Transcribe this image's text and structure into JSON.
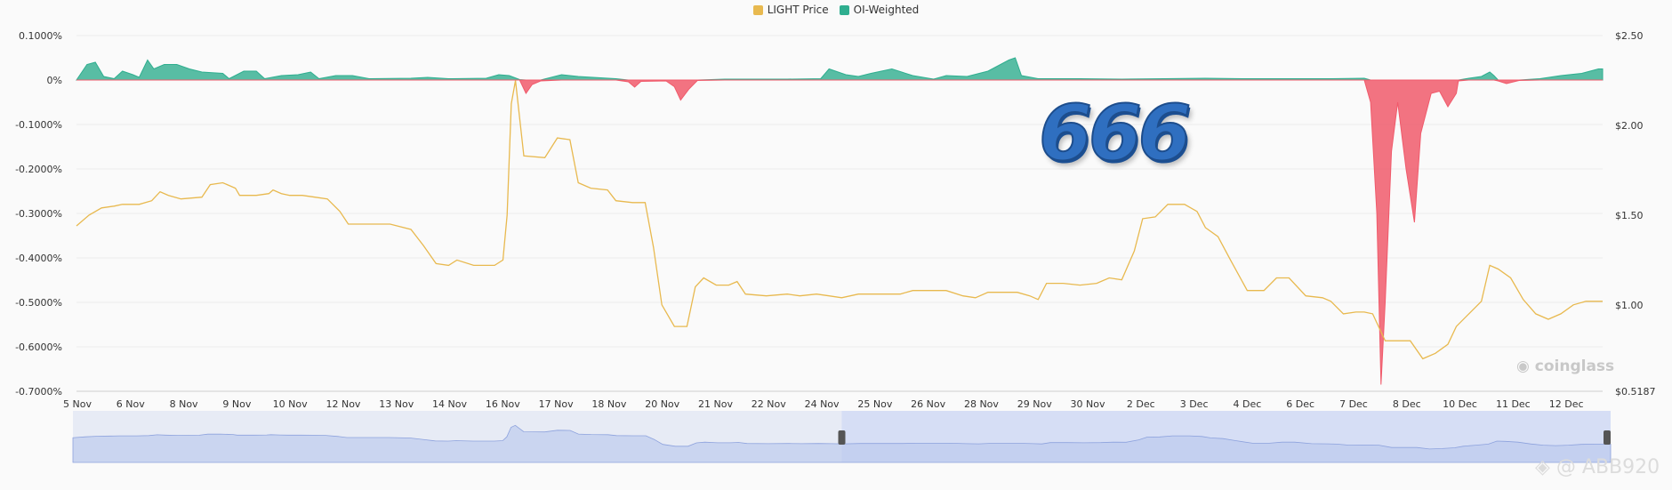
{
  "legend": [
    {
      "label": "LIGHT Price",
      "color": "#e8b94f"
    },
    {
      "label": "OI-Weighted",
      "color": "#2fae8f"
    }
  ],
  "overlay_text": "666",
  "watermarks": {
    "brand": "coinglass",
    "user": "@ ABB920"
  },
  "chart_data": {
    "type": "area",
    "title": "",
    "left_axis": {
      "ticks": [
        "0.1000%",
        "0%",
        "-0.1000%",
        "-0.2000%",
        "-0.3000%",
        "-0.4000%",
        "-0.5000%",
        "-0.6000%",
        "-0.7000%"
      ],
      "range": [
        -0.7,
        0.1
      ],
      "unit": "%"
    },
    "right_axis": {
      "ticks": [
        "$2.50",
        "$2.00",
        "$1.50",
        "$1.00",
        "$0.5187"
      ],
      "tick_values": [
        2.5,
        2.0,
        1.5,
        1.0,
        0.5187
      ],
      "range": [
        0.5187,
        2.5
      ]
    },
    "x_tick_labels": [
      "5 Nov",
      "6 Nov",
      "8 Nov",
      "9 Nov",
      "10 Nov",
      "12 Nov",
      "13 Nov",
      "14 Nov",
      "16 Nov",
      "17 Nov",
      "18 Nov",
      "20 Nov",
      "21 Nov",
      "22 Nov",
      "24 Nov",
      "25 Nov",
      "26 Nov",
      "28 Nov",
      "29 Nov",
      "30 Nov",
      "2 Dec",
      "3 Dec",
      "4 Dec",
      "6 Dec",
      "7 Dec",
      "8 Dec",
      "10 Dec",
      "11 Dec",
      "12 Dec"
    ],
    "x_range_days": [
      0,
      36.5
    ],
    "grid": true,
    "legend_position": "top-center",
    "series": [
      {
        "name": "OI-Weighted",
        "axis": "left",
        "positive_color": "#2fae8f",
        "negative_color": "#f05a6b",
        "points": [
          [
            0,
            0.0
          ],
          [
            0.25,
            0.035
          ],
          [
            0.45,
            0.04
          ],
          [
            0.65,
            0.008
          ],
          [
            0.9,
            0.003
          ],
          [
            1.1,
            0.02
          ],
          [
            1.35,
            0.012
          ],
          [
            1.5,
            0.006
          ],
          [
            1.7,
            0.045
          ],
          [
            1.85,
            0.025
          ],
          [
            2.1,
            0.035
          ],
          [
            2.4,
            0.035
          ],
          [
            2.7,
            0.025
          ],
          [
            3.0,
            0.018
          ],
          [
            3.5,
            0.015
          ],
          [
            3.65,
            0.003
          ],
          [
            4.0,
            0.02
          ],
          [
            4.3,
            0.02
          ],
          [
            4.5,
            0.003
          ],
          [
            4.9,
            0.01
          ],
          [
            5.3,
            0.012
          ],
          [
            5.6,
            0.018
          ],
          [
            5.8,
            0.003
          ],
          [
            6.2,
            0.01
          ],
          [
            6.6,
            0.01
          ],
          [
            7.0,
            0.003
          ],
          [
            8.0,
            0.004
          ],
          [
            8.4,
            0.006
          ],
          [
            8.9,
            0.003
          ],
          [
            9.8,
            0.004
          ],
          [
            10.1,
            0.012
          ],
          [
            10.35,
            0.01
          ],
          [
            10.6,
            0.001
          ],
          [
            10.75,
            -0.03
          ],
          [
            10.9,
            -0.01
          ],
          [
            11.1,
            -0.002
          ],
          [
            11.6,
            0.012
          ],
          [
            12.0,
            0.008
          ],
          [
            12.9,
            0.003
          ],
          [
            13.2,
            -0.004
          ],
          [
            13.35,
            -0.016
          ],
          [
            13.5,
            -0.003
          ],
          [
            14.1,
            -0.002
          ],
          [
            14.3,
            -0.015
          ],
          [
            14.45,
            -0.045
          ],
          [
            14.65,
            -0.02
          ],
          [
            14.85,
            -0.001
          ],
          [
            15.5,
            0.002
          ],
          [
            17.0,
            0.002
          ],
          [
            17.8,
            0.003
          ],
          [
            18.0,
            0.025
          ],
          [
            18.4,
            0.012
          ],
          [
            18.7,
            0.008
          ],
          [
            19.0,
            0.015
          ],
          [
            19.5,
            0.025
          ],
          [
            20.0,
            0.01
          ],
          [
            20.5,
            0.002
          ],
          [
            20.8,
            0.01
          ],
          [
            21.3,
            0.008
          ],
          [
            21.8,
            0.02
          ],
          [
            22.0,
            0.03
          ],
          [
            22.3,
            0.045
          ],
          [
            22.45,
            0.05
          ],
          [
            22.6,
            0.01
          ],
          [
            23.0,
            0.003
          ],
          [
            24.0,
            0.003
          ],
          [
            25.0,
            0.002
          ],
          [
            26.0,
            0.003
          ],
          [
            27.0,
            0.004
          ],
          [
            28.0,
            0.003
          ],
          [
            29.0,
            0.003
          ],
          [
            30.0,
            0.003
          ],
          [
            30.8,
            0.004
          ],
          [
            30.95,
            -0.05
          ],
          [
            31.1,
            -0.3
          ],
          [
            31.2,
            -0.685
          ],
          [
            31.3,
            -0.5
          ],
          [
            31.45,
            -0.16
          ],
          [
            31.6,
            -0.05
          ],
          [
            31.8,
            -0.2
          ],
          [
            32.0,
            -0.32
          ],
          [
            32.15,
            -0.12
          ],
          [
            32.4,
            -0.03
          ],
          [
            32.6,
            -0.025
          ],
          [
            32.8,
            -0.06
          ],
          [
            33.0,
            -0.03
          ],
          [
            33.05,
            -0.002
          ],
          [
            33.3,
            0.004
          ],
          [
            33.6,
            0.008
          ],
          [
            33.8,
            0.018
          ],
          [
            33.9,
            0.01
          ],
          [
            34.0,
            -0.002
          ],
          [
            34.2,
            -0.008
          ],
          [
            34.5,
            -0.001
          ],
          [
            35.0,
            0.003
          ],
          [
            35.5,
            0.01
          ],
          [
            36.0,
            0.015
          ],
          [
            36.4,
            0.025
          ],
          [
            36.5,
            0.025
          ]
        ]
      },
      {
        "name": "LIGHT Price",
        "axis": "right",
        "color": "#e8b94f",
        "points": [
          [
            0,
            1.44
          ],
          [
            0.3,
            1.5
          ],
          [
            0.6,
            1.54
          ],
          [
            0.9,
            1.55
          ],
          [
            1.1,
            1.56
          ],
          [
            1.5,
            1.56
          ],
          [
            1.8,
            1.58
          ],
          [
            2.0,
            1.63
          ],
          [
            2.2,
            1.61
          ],
          [
            2.5,
            1.59
          ],
          [
            3.0,
            1.6
          ],
          [
            3.2,
            1.67
          ],
          [
            3.5,
            1.68
          ],
          [
            3.8,
            1.65
          ],
          [
            3.9,
            1.61
          ],
          [
            4.3,
            1.61
          ],
          [
            4.6,
            1.62
          ],
          [
            4.7,
            1.64
          ],
          [
            4.9,
            1.62
          ],
          [
            5.1,
            1.61
          ],
          [
            5.4,
            1.61
          ],
          [
            5.7,
            1.6
          ],
          [
            6.0,
            1.59
          ],
          [
            6.3,
            1.52
          ],
          [
            6.5,
            1.45
          ],
          [
            6.8,
            1.45
          ],
          [
            7.5,
            1.45
          ],
          [
            8.0,
            1.42
          ],
          [
            8.3,
            1.33
          ],
          [
            8.6,
            1.23
          ],
          [
            8.9,
            1.22
          ],
          [
            9.1,
            1.25
          ],
          [
            9.5,
            1.22
          ],
          [
            10.0,
            1.22
          ],
          [
            10.2,
            1.25
          ],
          [
            10.3,
            1.5
          ],
          [
            10.4,
            2.12
          ],
          [
            10.5,
            2.25
          ],
          [
            10.7,
            1.83
          ],
          [
            11.2,
            1.82
          ],
          [
            11.5,
            1.93
          ],
          [
            11.8,
            1.92
          ],
          [
            12.0,
            1.68
          ],
          [
            12.3,
            1.65
          ],
          [
            12.7,
            1.64
          ],
          [
            12.9,
            1.58
          ],
          [
            13.3,
            1.57
          ],
          [
            13.6,
            1.57
          ],
          [
            13.8,
            1.32
          ],
          [
            14.0,
            1.0
          ],
          [
            14.3,
            0.88
          ],
          [
            14.6,
            0.88
          ],
          [
            14.8,
            1.1
          ],
          [
            15.0,
            1.15
          ],
          [
            15.3,
            1.11
          ],
          [
            15.6,
            1.11
          ],
          [
            15.8,
            1.13
          ],
          [
            16.0,
            1.06
          ],
          [
            16.5,
            1.05
          ],
          [
            17.0,
            1.06
          ],
          [
            17.3,
            1.05
          ],
          [
            17.7,
            1.06
          ],
          [
            18.0,
            1.05
          ],
          [
            18.3,
            1.04
          ],
          [
            18.7,
            1.06
          ],
          [
            19.0,
            1.06
          ],
          [
            19.3,
            1.06
          ],
          [
            19.7,
            1.06
          ],
          [
            20.0,
            1.08
          ],
          [
            20.4,
            1.08
          ],
          [
            20.8,
            1.08
          ],
          [
            21.2,
            1.05
          ],
          [
            21.5,
            1.04
          ],
          [
            21.8,
            1.07
          ],
          [
            22.1,
            1.07
          ],
          [
            22.5,
            1.07
          ],
          [
            22.8,
            1.05
          ],
          [
            23.0,
            1.03
          ],
          [
            23.2,
            1.12
          ],
          [
            23.6,
            1.12
          ],
          [
            24.0,
            1.11
          ],
          [
            24.4,
            1.12
          ],
          [
            24.7,
            1.15
          ],
          [
            25.0,
            1.14
          ],
          [
            25.3,
            1.3
          ],
          [
            25.5,
            1.48
          ],
          [
            25.8,
            1.49
          ],
          [
            26.1,
            1.56
          ],
          [
            26.5,
            1.56
          ],
          [
            26.8,
            1.52
          ],
          [
            27.0,
            1.43
          ],
          [
            27.3,
            1.38
          ],
          [
            27.6,
            1.25
          ],
          [
            28.0,
            1.08
          ],
          [
            28.4,
            1.08
          ],
          [
            28.7,
            1.15
          ],
          [
            29.0,
            1.15
          ],
          [
            29.4,
            1.05
          ],
          [
            29.8,
            1.04
          ],
          [
            30.0,
            1.02
          ],
          [
            30.3,
            0.95
          ],
          [
            30.6,
            0.96
          ],
          [
            30.8,
            0.96
          ],
          [
            31.0,
            0.95
          ],
          [
            31.3,
            0.8
          ],
          [
            31.6,
            0.8
          ],
          [
            31.9,
            0.8
          ],
          [
            32.2,
            0.7
          ],
          [
            32.5,
            0.73
          ],
          [
            32.8,
            0.78
          ],
          [
            33.0,
            0.88
          ],
          [
            33.3,
            0.95
          ],
          [
            33.6,
            1.02
          ],
          [
            33.8,
            1.22
          ],
          [
            34.0,
            1.2
          ],
          [
            34.3,
            1.15
          ],
          [
            34.6,
            1.03
          ],
          [
            34.9,
            0.95
          ],
          [
            35.2,
            0.92
          ],
          [
            35.5,
            0.95
          ],
          [
            35.8,
            1.0
          ],
          [
            36.1,
            1.02
          ],
          [
            36.5,
            1.02
          ]
        ]
      }
    ],
    "navigator": {
      "selection_start_fraction": 0.5,
      "selection_end_fraction": 1.0
    }
  }
}
